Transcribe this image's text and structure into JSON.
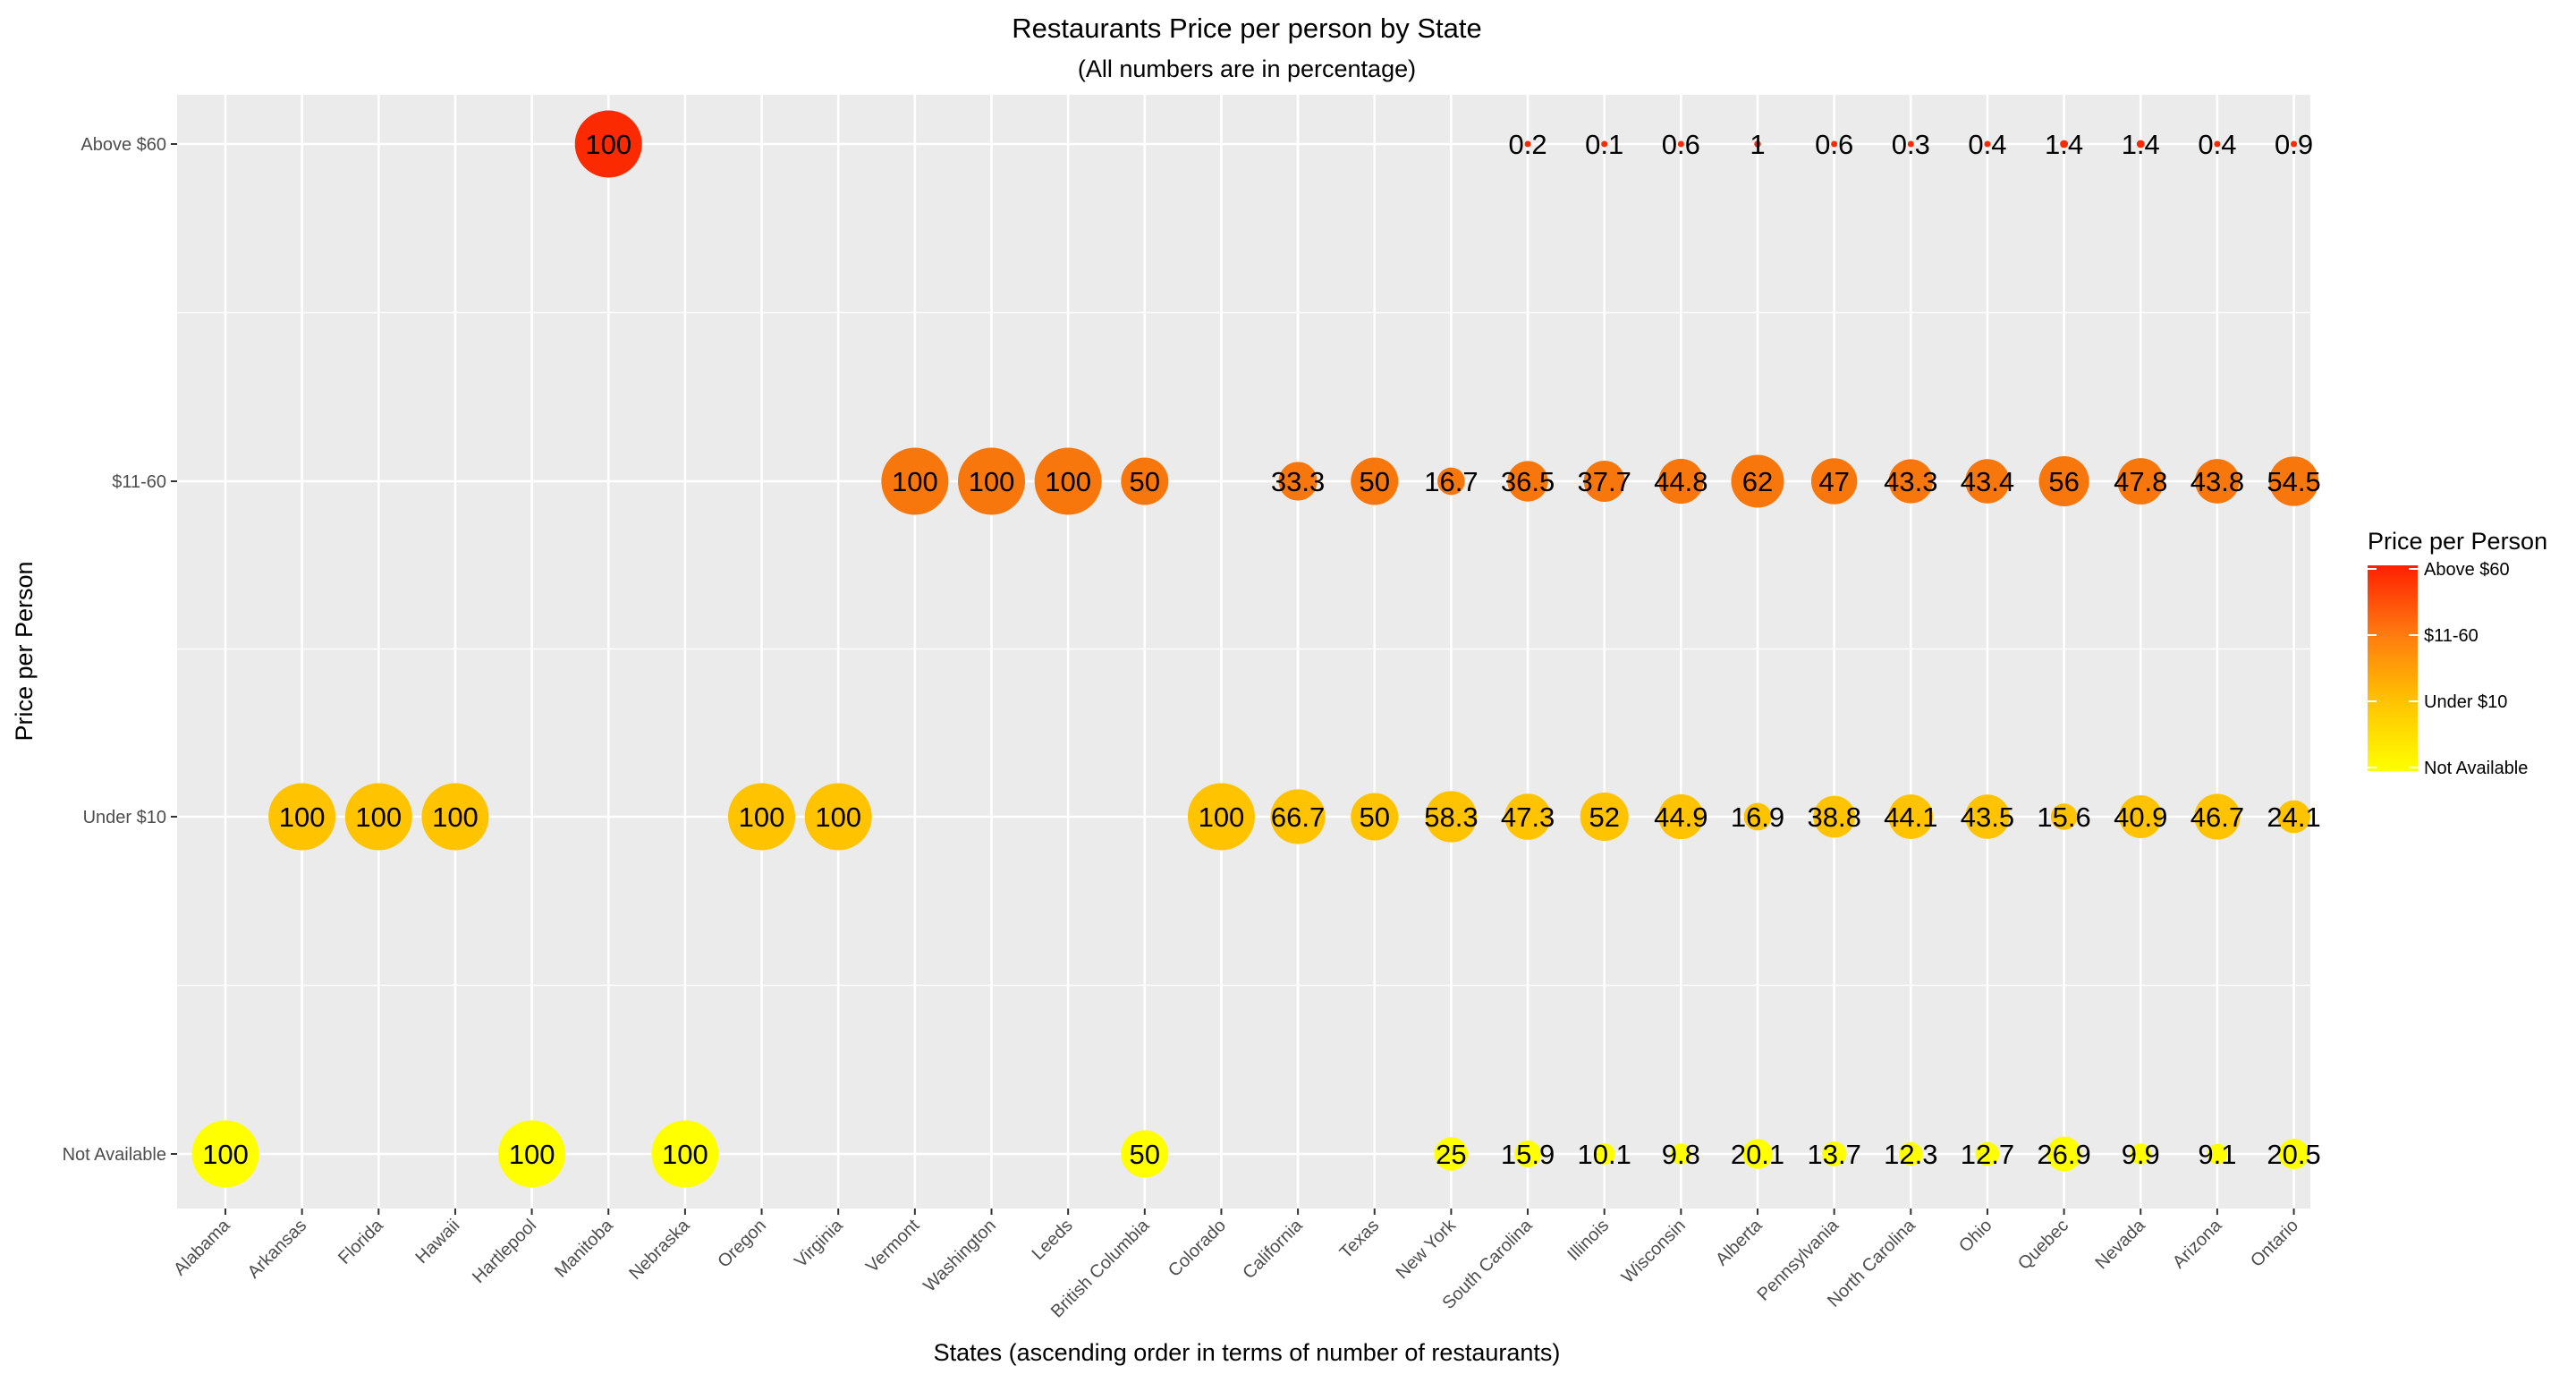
{
  "chart_data": {
    "type": "scatter",
    "title": "Restaurants Price per person by State",
    "subtitle": "(All numbers are in percentage)",
    "xlabel": "States (ascending order in terms of number of restaurants)",
    "ylabel": "Price per Person",
    "grid": true,
    "categories": [
      "Alabama",
      "Arkansas",
      "Florida",
      "Hawaii",
      "Hartlepool",
      "Manitoba",
      "Nebraska",
      "Oregon",
      "Virginia",
      "Vermont",
      "Washington",
      "Leeds",
      "British Columbia",
      "Colorado",
      "California",
      "Texas",
      "New York",
      "South Carolina",
      "Illinois",
      "Wisconsin",
      "Alberta",
      "Pennsylvania",
      "North Carolina",
      "Ohio",
      "Quebec",
      "Nevada",
      "Arizona",
      "Ontario"
    ],
    "y_levels": [
      "Not Available",
      "Under $10",
      "$11-60",
      "Above $60"
    ],
    "series": [
      {
        "values": [
          null,
          null,
          null,
          null,
          null,
          100,
          null,
          null,
          null,
          null,
          null,
          null,
          null,
          null,
          null,
          null,
          null,
          0.2,
          0.1,
          0.6,
          1,
          0.6,
          0.3,
          0.4,
          1.4,
          1.4,
          0.4,
          0.9
        ]
      },
      {
        "values": [
          null,
          null,
          null,
          null,
          null,
          null,
          null,
          null,
          null,
          100,
          100,
          100,
          50,
          null,
          33.3,
          50,
          16.7,
          36.5,
          37.7,
          44.8,
          62,
          47,
          43.3,
          43.4,
          56,
          47.8,
          43.8,
          54.5
        ]
      },
      {
        "values": [
          null,
          100,
          100,
          100,
          null,
          null,
          null,
          100,
          100,
          null,
          null,
          null,
          null,
          100,
          66.7,
          50,
          58.3,
          47.3,
          52,
          44.9,
          16.9,
          38.8,
          44.1,
          43.5,
          15.6,
          40.9,
          46.7,
          24.1
        ]
      },
      {
        "values": [
          100,
          null,
          null,
          null,
          100,
          null,
          100,
          null,
          null,
          null,
          null,
          null,
          50,
          null,
          null,
          null,
          25,
          15.9,
          10.1,
          9.8,
          20.1,
          13.7,
          12.3,
          12.7,
          26.9,
          9.9,
          9.1,
          20.5
        ]
      }
    ],
    "legend": {
      "title": "Price per Person",
      "placement": "right",
      "labels": [
        "Above $60",
        "$11-60",
        "Under $10",
        "Not Available"
      ],
      "colors": [
        "#FF2000",
        "#FF7A10",
        "#FFC400",
        "#FFFF00"
      ]
    },
    "level_colors": {
      "Above $60": "#FB2A00",
      "$11-60": "#F7770C",
      "Under $10": "#FFC300",
      "Not Available": "#FFFF00"
    },
    "panel_color": "#EBEBEB",
    "grid_color": "#FFFFFF"
  }
}
